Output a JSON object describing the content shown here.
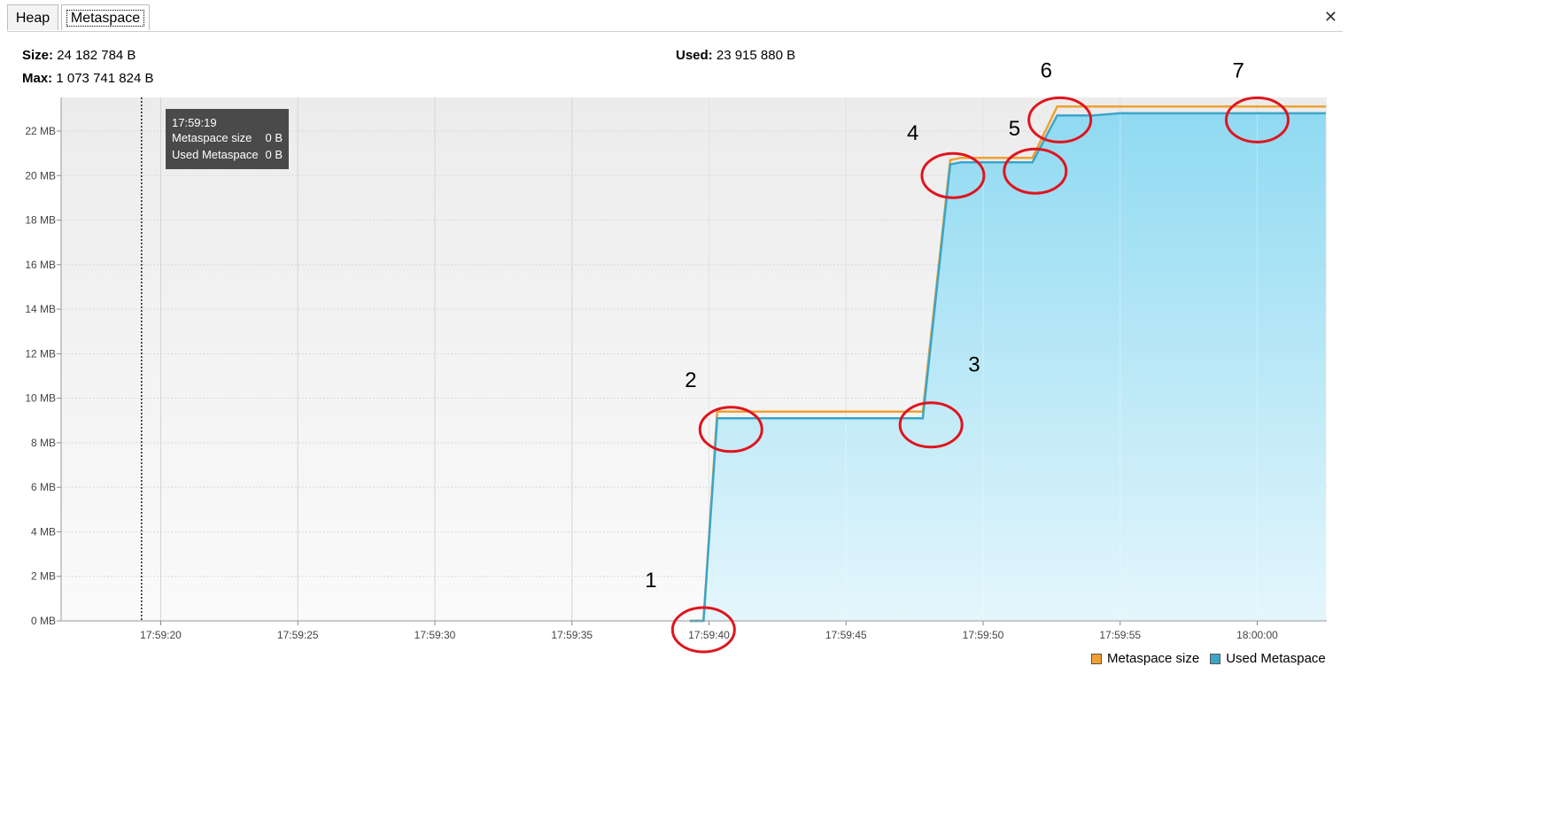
{
  "tabs": [
    {
      "label": "Heap"
    },
    {
      "label": "Metaspace"
    }
  ],
  "close_label": "✕",
  "info": {
    "size_label": "Size:",
    "size_value": "24 182 784 B",
    "max_label": "Max:",
    "max_value": "1 073 741 824 B",
    "used_label": "Used:",
    "used_value": "23 915 880 B"
  },
  "tooltip": {
    "time": "17:59:19",
    "rows": [
      {
        "label": "Metaspace size",
        "value": "0 B"
      },
      {
        "label": "Used Metaspace",
        "value": "0 B"
      }
    ]
  },
  "colors": {
    "metaspace_size": "#f0a030",
    "used_metaspace": "#3ba5c8",
    "fill_top": "#90daf2",
    "fill_bottom": "#e4f6fc",
    "annotation_circle": "#e0141e"
  },
  "chart_data": {
    "type": "area",
    "y_ticks": [
      "0 MB",
      "2 MB",
      "4 MB",
      "6 MB",
      "8 MB",
      "10 MB",
      "12 MB",
      "14 MB",
      "16 MB",
      "18 MB",
      "20 MB",
      "22 MB"
    ],
    "x_ticks": [
      "17:59:20",
      "17:59:25",
      "17:59:30",
      "17:59:35",
      "17:59:40",
      "17:59:45",
      "17:59:50",
      "17:59:55",
      "18:00:00"
    ],
    "x_range_seconds": [
      19.3,
      62.5
    ],
    "ylim_mb": [
      0,
      23.5
    ],
    "series": [
      {
        "name": "Metaspace size",
        "x": [
          39.3,
          39.8,
          40.3,
          47.8,
          48.8,
          49.2,
          51.8,
          52.7,
          54.0,
          62.5
        ],
        "y": [
          0,
          0,
          9.4,
          9.4,
          20.7,
          20.8,
          20.8,
          23.1,
          23.1,
          23.1
        ]
      },
      {
        "name": "Used Metaspace",
        "x": [
          39.3,
          39.8,
          40.3,
          47.8,
          48.8,
          49.2,
          51.8,
          52.7,
          54.0,
          55.0,
          62.5
        ],
        "y": [
          0,
          0,
          9.1,
          9.1,
          20.5,
          20.6,
          20.6,
          22.7,
          22.7,
          22.8,
          22.8
        ]
      }
    ],
    "legend": [
      "Metaspace size",
      "Used Metaspace"
    ],
    "legend_position": "bottom-right",
    "cursor_time_seconds": 19.3,
    "annotations": [
      {
        "label": "1",
        "x": 39.8,
        "y": 0
      },
      {
        "label": "2",
        "x": 40.8,
        "y": 9.0
      },
      {
        "label": "3",
        "x": 48.1,
        "y": 9.2
      },
      {
        "label": "4",
        "x": 48.9,
        "y": 20.4
      },
      {
        "label": "5",
        "x": 51.9,
        "y": 20.6
      },
      {
        "label": "6",
        "x": 52.8,
        "y": 22.9
      },
      {
        "label": "7",
        "x": 60.0,
        "y": 22.9
      }
    ]
  }
}
